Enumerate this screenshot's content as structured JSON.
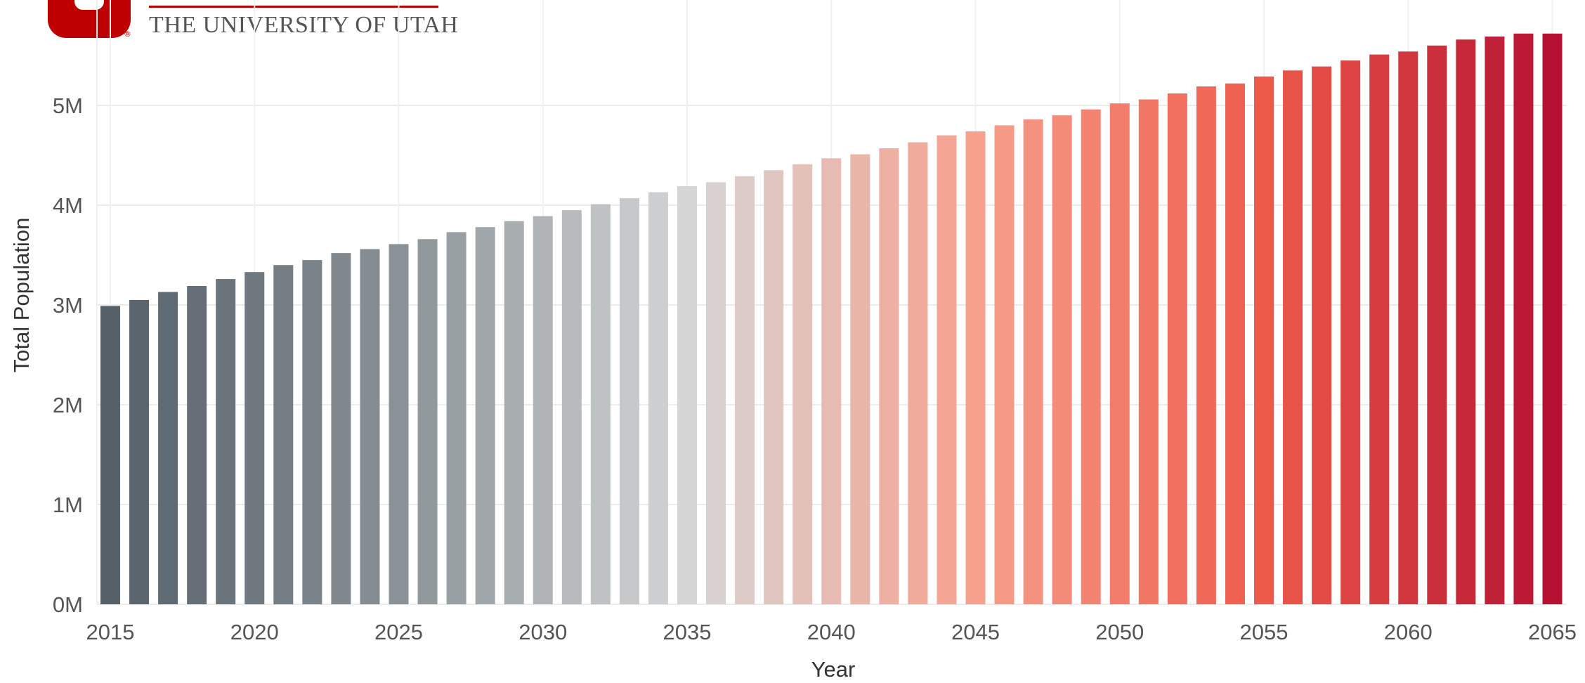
{
  "header": {
    "logo_text": "THE UNIVERSITY OF UTAH",
    "logo_registered": "®",
    "brand_color": "#be0000"
  },
  "chart_data": {
    "type": "bar",
    "title": "",
    "xlabel": "Year",
    "ylabel": "Total Population",
    "categories": [
      2015,
      2016,
      2017,
      2018,
      2019,
      2020,
      2021,
      2022,
      2023,
      2024,
      2025,
      2026,
      2027,
      2028,
      2029,
      2030,
      2031,
      2032,
      2033,
      2034,
      2035,
      2036,
      2037,
      2038,
      2039,
      2040,
      2041,
      2042,
      2043,
      2044,
      2045,
      2046,
      2047,
      2048,
      2049,
      2050,
      2051,
      2052,
      2053,
      2054,
      2055,
      2056,
      2057,
      2058,
      2059,
      2060,
      2061,
      2062,
      2063,
      2064,
      2065
    ],
    "values": [
      2.99,
      3.05,
      3.13,
      3.19,
      3.26,
      3.33,
      3.4,
      3.45,
      3.52,
      3.56,
      3.61,
      3.66,
      3.73,
      3.78,
      3.84,
      3.89,
      3.95,
      4.01,
      4.07,
      4.13,
      4.19,
      4.23,
      4.29,
      4.35,
      4.41,
      4.47,
      4.51,
      4.57,
      4.63,
      4.7,
      4.74,
      4.8,
      4.86,
      4.9,
      4.96,
      5.02,
      5.06,
      5.12,
      5.19,
      5.22,
      5.29,
      5.35,
      5.39,
      5.45,
      5.51,
      5.54,
      5.6,
      5.66,
      5.69,
      5.72,
      5.72
    ],
    "value_unit": "M",
    "ylim": [
      0,
      5.8
    ],
    "yticks": [
      0,
      1,
      2,
      3,
      4,
      5
    ],
    "ytick_labels": [
      "0M",
      "1M",
      "2M",
      "3M",
      "4M",
      "5M"
    ],
    "xticks": [
      2015,
      2020,
      2025,
      2030,
      2035,
      2040,
      2045,
      2050,
      2055,
      2060,
      2065
    ],
    "xtick_labels": [
      "2015",
      "2020",
      "2025",
      "2030",
      "2035",
      "2040",
      "2045",
      "2050",
      "2055",
      "2060",
      "2065"
    ],
    "grid": true,
    "color_scale": {
      "type": "diverging",
      "midpoint_year": 2038,
      "stops": [
        "#566069",
        "#8a9297",
        "#d6d6d6",
        "#f7a08c",
        "#ee5a4a",
        "#b51233"
      ]
    }
  }
}
